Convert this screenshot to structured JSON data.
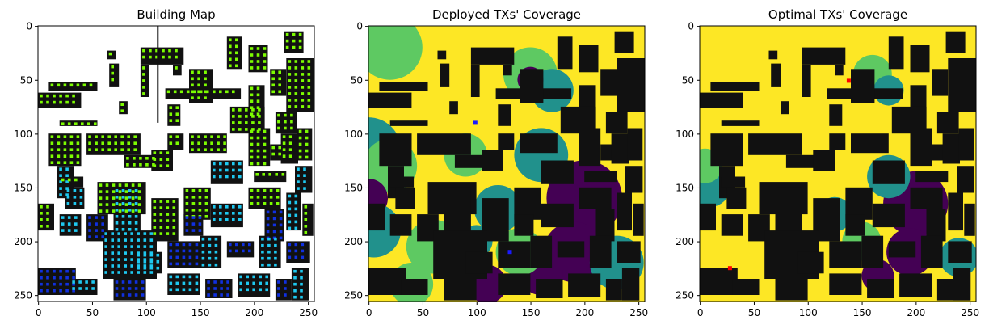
{
  "panels": [
    {
      "title": "Building Map",
      "kind": "buildings"
    },
    {
      "title": "Deployed TXs' Coverage",
      "kind": "deployed"
    },
    {
      "title": "Optimal TXs' Coverage",
      "kind": "optimal"
    }
  ],
  "axis": {
    "x_ticks": [
      0,
      50,
      100,
      150,
      200,
      250
    ],
    "y_ticks": [
      0,
      50,
      100,
      150,
      200,
      250
    ],
    "range": [
      0,
      256
    ]
  },
  "colors": {
    "building": "#111111",
    "yellow": "#fde725",
    "light_green": "#5ec962",
    "teal": "#21918c",
    "purple": "#440154",
    "bright_green": "#7cfc00",
    "cyan": "#1ec8f0",
    "blue": "#1030e0",
    "tx_deployed": "#1a1aff",
    "tx_optimal": "#ff0000"
  },
  "markers": {
    "deployed_tx": [
      [
        99,
        90
      ],
      [
        131,
        210
      ]
    ],
    "optimal_tx": [
      [
        138,
        51
      ],
      [
        28,
        225
      ]
    ]
  }
}
